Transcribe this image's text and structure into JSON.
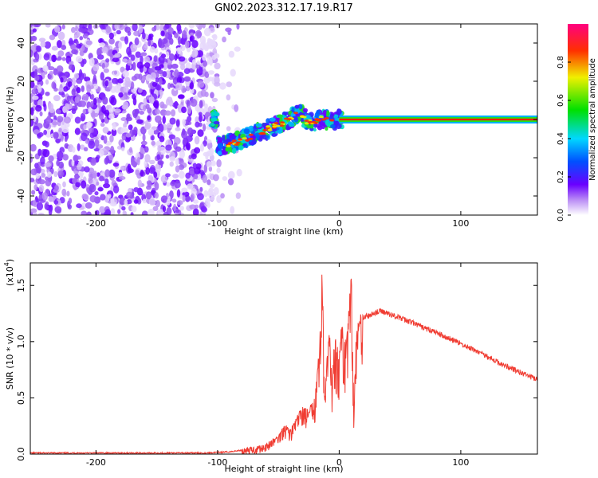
{
  "title": "GN02.2023.312.17.19.R17",
  "chart_data": [
    {
      "type": "heatmap",
      "xlabel": "Height of straight line (km)",
      "ylabel": "Frequency (Hz)",
      "xlim": [
        -254,
        163
      ],
      "ylim": [
        -50,
        50
      ],
      "xticks": [
        -200,
        -100,
        0,
        100
      ],
      "yticks": [
        -40,
        -20,
        0,
        20,
        40
      ],
      "colorbar": {
        "label": "Normalized spectral amplitude",
        "range": [
          0,
          1
        ],
        "ticks": [
          "0.0",
          "0.2",
          "0.4",
          "0.6",
          "0.8"
        ]
      },
      "regions": [
        {
          "name": "noise",
          "x_range": [
            -254,
            -100
          ],
          "y_range": [
            -50,
            50
          ]
        },
        {
          "name": "trace",
          "points": [
            [
              -100,
              -14
            ],
            [
              -85,
              -12
            ],
            [
              -70,
              -8
            ],
            [
              -55,
              -4
            ],
            [
              -40,
              0
            ],
            [
              -32,
              4
            ],
            [
              -25,
              -2
            ],
            [
              -15,
              0
            ],
            [
              -5,
              -1
            ],
            [
              0,
              0
            ],
            [
              163,
              0
            ]
          ]
        }
      ]
    },
    {
      "type": "line",
      "xlabel": "Height of straight line (km)",
      "ylabel": "SNR (10 * v/v)",
      "y_multiplier": "(x10",
      "y_multiplier_exp": "4",
      "xlim": [
        -254,
        163
      ],
      "ylim": [
        0,
        1.7
      ],
      "xticks": [
        -200,
        -100,
        0,
        100
      ],
      "yticks": [
        "0.0",
        "0.5",
        "1.0",
        "1.5"
      ],
      "color": "#f03c32",
      "series": [
        {
          "x": [
            -254,
            -200,
            -150,
            -110,
            -90,
            -70,
            -60,
            -50,
            -45,
            -40,
            -35,
            -30,
            -25,
            -20,
            -16,
            -14,
            -12,
            -10,
            -8,
            -6,
            -4,
            -2,
            0,
            2,
            4,
            6,
            8,
            10,
            12,
            14,
            16,
            18,
            20,
            25,
            30,
            35,
            40,
            50,
            60,
            70,
            80,
            90,
            100,
            110,
            120,
            130,
            140,
            150,
            163
          ],
          "y": [
            0.01,
            0.01,
            0.01,
            0.01,
            0.02,
            0.05,
            0.08,
            0.15,
            0.25,
            0.2,
            0.3,
            0.4,
            0.35,
            0.5,
            0.9,
            1.65,
            0.4,
            0.8,
            1.0,
            0.6,
            1.0,
            0.9,
            0.8,
            1.1,
            0.9,
            1.0,
            1.2,
            1.58,
            0.4,
            1.0,
            1.1,
            1.18,
            1.22,
            1.23,
            1.26,
            1.27,
            1.25,
            1.21,
            1.17,
            1.12,
            1.08,
            1.03,
            0.98,
            0.93,
            0.88,
            0.82,
            0.77,
            0.72,
            0.66
          ]
        }
      ]
    }
  ]
}
